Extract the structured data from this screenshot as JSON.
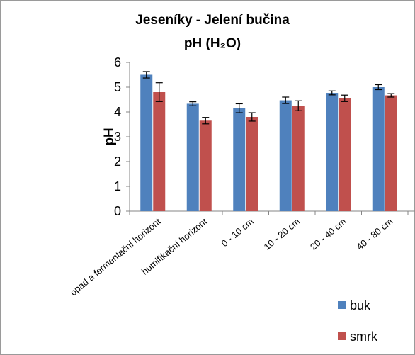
{
  "chart_data": {
    "type": "bar",
    "title_line1": "Jeseníky - Jelení bučina",
    "title_line2": "pH (H₂O)",
    "ylabel": "pH",
    "xlabel": "",
    "ylim": [
      0,
      6
    ],
    "yticks": [
      "0",
      "1",
      "2",
      "3",
      "4",
      "5",
      "6"
    ],
    "categories": [
      "opad a fermentační horizont",
      "humifikační horizont",
      "0 - 10 cm",
      "10 - 20 cm",
      "20 - 40 cm",
      "40 - 80 cm"
    ],
    "series": [
      {
        "name": "buk",
        "color": "#4f81bd",
        "values": [
          5.5,
          4.33,
          4.15,
          4.47,
          4.77,
          5.0
        ],
        "errors": [
          0.13,
          0.08,
          0.18,
          0.13,
          0.08,
          0.1
        ]
      },
      {
        "name": "smrk",
        "color": "#c0504d",
        "values": [
          4.8,
          3.65,
          3.8,
          4.25,
          4.55,
          4.67
        ],
        "errors": [
          0.38,
          0.13,
          0.17,
          0.2,
          0.13,
          0.07
        ]
      }
    ],
    "grid": false,
    "legend_position": "bottom-right"
  }
}
